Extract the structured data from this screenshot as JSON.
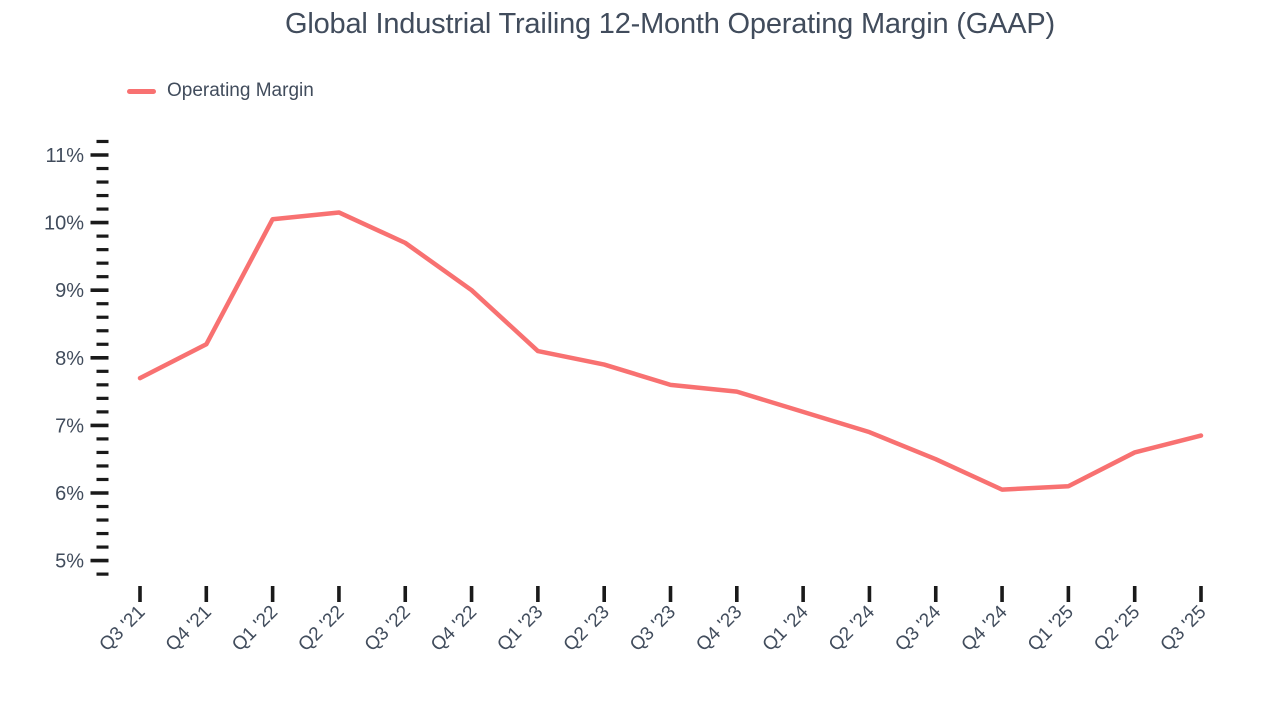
{
  "title": "Global Industrial Trailing 12-Month Operating Margin (GAAP)",
  "legend": {
    "label": "Operating Margin"
  },
  "colors": {
    "line": "#F87171",
    "text": "#414C5C",
    "tick": "#1A1A1A",
    "background": "#FFFFFF"
  },
  "chart_data": {
    "type": "line",
    "title": "Global Industrial Trailing 12-Month Operating Margin (GAAP)",
    "categories": [
      "Q3 '21",
      "Q4 '21",
      "Q1 '22",
      "Q2 '22",
      "Q3 '22",
      "Q4 '22",
      "Q1 '23",
      "Q2 '23",
      "Q3 '23",
      "Q4 '23",
      "Q1 '24",
      "Q2 '24",
      "Q3 '24",
      "Q4 '24",
      "Q1 '25",
      "Q2 '25",
      "Q3 '25"
    ],
    "series": [
      {
        "name": "Operating Margin",
        "color": "#F87171",
        "values": [
          7.7,
          8.2,
          10.05,
          10.15,
          9.7,
          9.0,
          8.1,
          7.9,
          7.6,
          7.5,
          7.2,
          6.9,
          6.5,
          6.05,
          6.1,
          6.6,
          6.85
        ]
      }
    ],
    "xlabel": "",
    "ylabel": "",
    "ylim": [
      4.8,
      11.2
    ],
    "y_major_ticks": [
      5,
      6,
      7,
      8,
      9,
      10,
      11
    ],
    "y_tick_labels": [
      "5%",
      "6%",
      "7%",
      "8%",
      "9%",
      "10%",
      "11%"
    ],
    "y_minor_step": 0.2,
    "grid": false,
    "legend_position": "top-left",
    "x_tick_label_rotation": -45
  }
}
